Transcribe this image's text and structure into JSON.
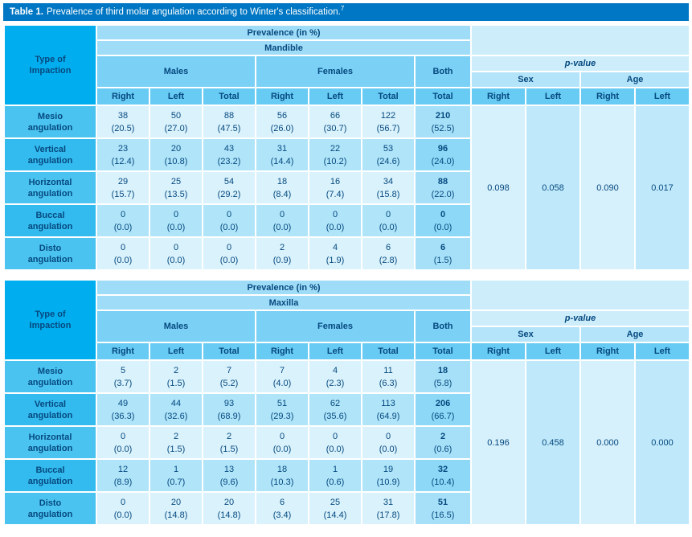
{
  "title": {
    "label": "Table 1.",
    "text": "Prevalence of third molar angulation according to Winter's classification.",
    "ref": "7"
  },
  "headers": {
    "type_of_impaction": "Type of Impaction",
    "prevalence": "Prevalence (in %)",
    "males": "Males",
    "females": "Females",
    "both": "Both",
    "p_value": "p-value",
    "sex": "Sex",
    "age": "Age",
    "right": "Right",
    "left": "Left",
    "total": "Total"
  },
  "colors": {
    "title_bar": "#0077C4",
    "type_of_impaction_cell": "#00AEEF",
    "header_light": "#9FDCF8",
    "header_medium": "#7AD0F5",
    "p_value_area": "#CDEDFB",
    "text_navy": "#06497F"
  },
  "sections": [
    {
      "anatomy": "Mandible",
      "rows": [
        {
          "label": "Mesio angulation",
          "values": [
            "38",
            "50",
            "88",
            "56",
            "66",
            "122",
            "210"
          ],
          "percents": [
            "(20.5)",
            "(27.0)",
            "(47.5)",
            "(26.0)",
            "(30.7)",
            "(56.7)",
            "(52.5)"
          ]
        },
        {
          "label": "Vertical angulation",
          "values": [
            "23",
            "20",
            "43",
            "31",
            "22",
            "53",
            "96"
          ],
          "percents": [
            "(12.4)",
            "(10.8)",
            "(23.2)",
            "(14.4)",
            "(10.2)",
            "(24.6)",
            "(24.0)"
          ]
        },
        {
          "label": "Horizontal angulation",
          "values": [
            "29",
            "25",
            "54",
            "18",
            "16",
            "34",
            "88"
          ],
          "percents": [
            "(15.7)",
            "(13.5)",
            "(29.2)",
            "(8.4)",
            "(7.4)",
            "(15.8)",
            "(22.0)"
          ]
        },
        {
          "label": "Buccal angulation",
          "values": [
            "0",
            "0",
            "0",
            "0",
            "0",
            "0",
            "0"
          ],
          "percents": [
            "(0.0)",
            "(0.0)",
            "(0.0)",
            "(0.0)",
            "(0.0)",
            "(0.0)",
            "(0.0)"
          ]
        },
        {
          "label": "Disto angulation",
          "values": [
            "0",
            "0",
            "0",
            "2",
            "4",
            "6",
            "6"
          ],
          "percents": [
            "(0.0)",
            "(0.0)",
            "(0.0)",
            "(0.9)",
            "(1.9)",
            "(2.8)",
            "(1.5)"
          ]
        }
      ],
      "p_values": [
        "0.098",
        "0.058",
        "0.090",
        "0.017"
      ]
    },
    {
      "anatomy": "Maxilla",
      "rows": [
        {
          "label": "Mesio angulation",
          "values": [
            "5",
            "2",
            "7",
            "7",
            "4",
            "11",
            "18"
          ],
          "percents": [
            "(3.7)",
            "(1.5)",
            "(5.2)",
            "(4.0)",
            "(2.3)",
            "(6.3)",
            "(5.8)"
          ]
        },
        {
          "label": "Vertical angulation",
          "values": [
            "49",
            "44",
            "93",
            "51",
            "62",
            "113",
            "206"
          ],
          "percents": [
            "(36.3)",
            "(32.6)",
            "(68.9)",
            "(29.3)",
            "(35.6)",
            "(64.9)",
            "(66.7)"
          ]
        },
        {
          "label": "Horizontal angulation",
          "values": [
            "0",
            "2",
            "2",
            "0",
            "0",
            "0",
            "2"
          ],
          "percents": [
            "(0.0)",
            "(1.5)",
            "(1.5)",
            "(0.0)",
            "(0.0)",
            "(0.0)",
            "(0.6)"
          ]
        },
        {
          "label": "Buccal angulation",
          "values": [
            "12",
            "1",
            "13",
            "18",
            "1",
            "19",
            "32"
          ],
          "percents": [
            "(8.9)",
            "(0.7)",
            "(9.6)",
            "(10.3)",
            "(0.6)",
            "(10.9)",
            "(10.4)"
          ]
        },
        {
          "label": "Disto angulation",
          "values": [
            "0",
            "20",
            "20",
            "6",
            "25",
            "31",
            "51"
          ],
          "percents": [
            "(0.0)",
            "(14.8)",
            "(14.8)",
            "(3.4)",
            "(14.4)",
            "(17.8)",
            "(16.5)"
          ]
        }
      ],
      "p_values": [
        "0.196",
        "0.458",
        "0.000",
        "0.000"
      ]
    }
  ]
}
